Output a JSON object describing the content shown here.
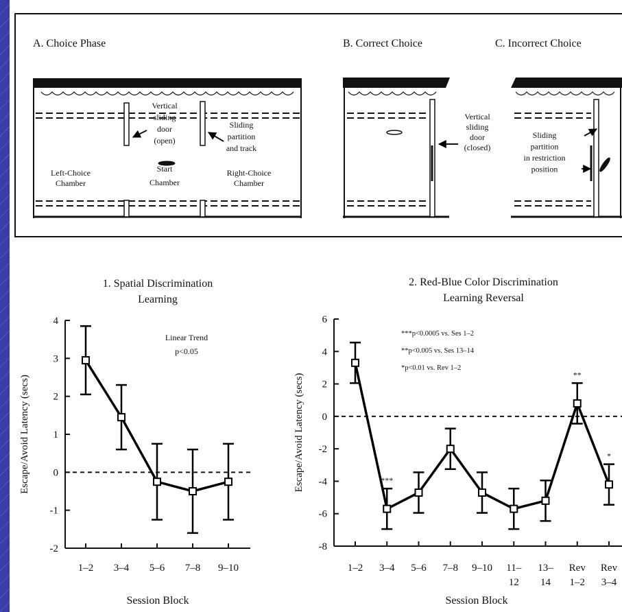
{
  "diagram": {
    "panels": [
      {
        "title": "A. Choice Phase",
        "labels": [
          [
            "Vertical",
            "sliding",
            "door",
            "(open)"
          ],
          [
            "Sliding",
            "partition",
            "and track"
          ],
          [
            "Left-Choice",
            "Chamber"
          ],
          [
            "Start",
            "Chamber"
          ],
          [
            "Right-Choice",
            "Chamber"
          ]
        ]
      },
      {
        "title": "B. Correct Choice",
        "labels": [
          [
            "Vertical",
            "sliding",
            "door",
            "(closed)"
          ]
        ]
      },
      {
        "title": "C. Incorrect Choice",
        "labels": [
          [
            "Sliding",
            "partition",
            "in restriction",
            "position"
          ]
        ]
      }
    ]
  },
  "chart_data": [
    {
      "type": "line",
      "title": [
        "1. Spatial Discrimination",
        "Learning"
      ],
      "xlabel": "Session Block",
      "ylabel": "Escape/Avoid Latency (secs)",
      "categories": [
        [
          "1–2"
        ],
        [
          "3–4"
        ],
        [
          "5–6"
        ],
        [
          "7–8"
        ],
        [
          "9–10"
        ]
      ],
      "values": [
        2.95,
        1.45,
        -0.25,
        -0.5,
        -0.25
      ],
      "errors": [
        0.9,
        0.85,
        1.0,
        1.1,
        1.0
      ],
      "ylim": [
        -2,
        4
      ],
      "yticks": [
        -2,
        -1,
        0,
        1,
        2,
        3,
        4
      ],
      "reference_line": 0,
      "color": "#000000",
      "annotations": [
        "Linear Trend",
        "p<0.05"
      ]
    },
    {
      "type": "line",
      "title": [
        "2. Red-Blue Color Discrimination",
        "Learning Reversal"
      ],
      "xlabel": "Session Block",
      "ylabel": "Escape/Avoid Latency (secs)",
      "categories": [
        [
          "1–2"
        ],
        [
          "3–4"
        ],
        [
          "5–6"
        ],
        [
          "7–8"
        ],
        [
          "9–10"
        ],
        [
          "11–",
          "12"
        ],
        [
          "13–",
          "14"
        ],
        [
          "Rev",
          "1–2"
        ],
        [
          "Rev",
          "3–4"
        ]
      ],
      "values": [
        3.3,
        -5.7,
        -4.7,
        -2.0,
        -4.7,
        -5.7,
        -5.2,
        0.8,
        -4.2
      ],
      "errors": [
        1.25,
        1.25,
        1.25,
        1.25,
        1.25,
        1.25,
        1.25,
        1.25,
        1.25
      ],
      "significance": [
        null,
        "***",
        null,
        null,
        null,
        null,
        null,
        "**",
        "*"
      ],
      "ylim": [
        -8,
        6
      ],
      "yticks": [
        -8,
        -6,
        -4,
        -2,
        0,
        2,
        4,
        6
      ],
      "reference_line": 0,
      "color": "#000000",
      "annotations": [
        "***p<0.0005 vs. Ses 1–2",
        "**p<0.005 vs. Ses 13–14",
        "*p<0.01 vs. Rev 1–2"
      ]
    }
  ]
}
